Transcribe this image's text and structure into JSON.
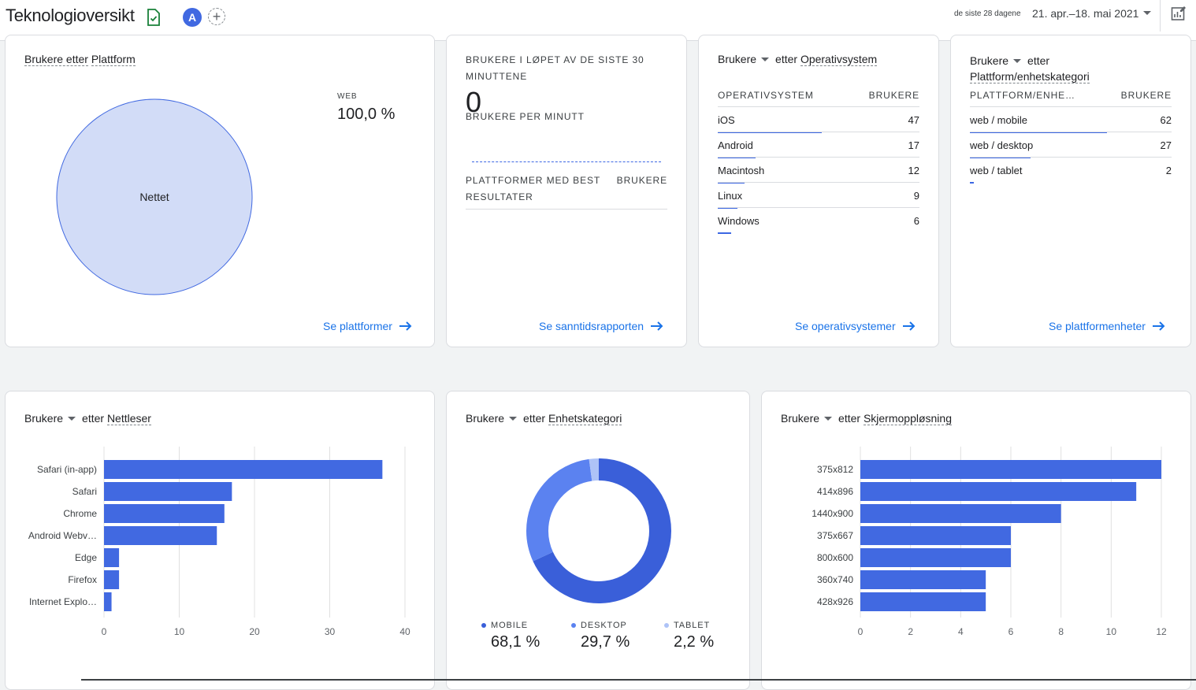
{
  "header": {
    "title": "Teknologioversikt",
    "avatar_letter": "A",
    "add_comparison": "+",
    "date_prefix": "de siste 28 dagene",
    "date_range": "21. apr.–18. mai 2021"
  },
  "platform_card": {
    "title_metric": "Brukere etter",
    "title_dim": "Plattform",
    "pie_label": "Nettet",
    "legend_key": "WEB",
    "legend_value": "100,0 %",
    "link": "Se plattformer",
    "chart_data": {
      "type": "pie",
      "categories": [
        "Nettet"
      ],
      "values": [
        100.0
      ]
    }
  },
  "realtime_card": {
    "title_line1": "BRUKERE I LØPET AV DE SISTE 30",
    "title_line2": "MINUTTENE",
    "big_value": "0",
    "per_minute": "BRUKERE PER MINUTT",
    "table_head_left1": "PLATTFORMER MED BEST",
    "table_head_left2": "RESULTATER",
    "table_head_right": "BRUKERE",
    "link": "Se sanntidsrapporten"
  },
  "os_card": {
    "title_metric": "Brukere",
    "title_mid": "etter",
    "title_dim": "Operativsystem",
    "col1": "OPERATIVSYSTEM",
    "col2": "BRUKERE",
    "rows": [
      {
        "label": "iOS",
        "value": "47",
        "share": 1.0
      },
      {
        "label": "Android",
        "value": "17",
        "share": 0.36
      },
      {
        "label": "Macintosh",
        "value": "12",
        "share": 0.26
      },
      {
        "label": "Linux",
        "value": "9",
        "share": 0.19
      },
      {
        "label": "Windows",
        "value": "6",
        "share": 0.13
      }
    ],
    "link": "Se operativsystemer"
  },
  "device_platform_card": {
    "title_metric": "Brukere",
    "title_mid": "etter",
    "title_dim": "Plattform/enhetskategori",
    "col1": "PLATTFORM/ENHE…",
    "col2": "BRUKERE",
    "rows": [
      {
        "label": "web / mobile",
        "value": "62",
        "share": 1.0
      },
      {
        "label": "web / desktop",
        "value": "27",
        "share": 0.44
      },
      {
        "label": "web / tablet",
        "value": "2",
        "share": 0.03
      }
    ],
    "link": "Se plattformenheter"
  },
  "browser_card": {
    "title_metric": "Brukere",
    "title_mid": "etter",
    "title_dim": "Nettleser",
    "chart_data": {
      "type": "bar",
      "orientation": "horizontal",
      "categories": [
        "Safari (in-app)",
        "Safari",
        "Chrome",
        "Android Webv…",
        "Edge",
        "Firefox",
        "Internet Explo…"
      ],
      "values": [
        37,
        17,
        16,
        15,
        2,
        2,
        1
      ],
      "xlim": [
        0,
        40
      ],
      "xticks": [
        "0",
        "10",
        "20",
        "30",
        "40"
      ],
      "color": "#4169e1"
    }
  },
  "device_card": {
    "title_metric": "Brukere",
    "title_mid": "etter",
    "title_dim": "Enhetskategori",
    "chart_data": {
      "type": "pie",
      "donut": true,
      "categories": [
        "MOBILE",
        "DESKTOP",
        "TABLET"
      ],
      "values": [
        68.1,
        29.7,
        2.2
      ],
      "colors": [
        "#3a5fd9",
        "#5b82f0",
        "#aec3f7"
      ]
    },
    "legend": [
      {
        "label": "MOBILE",
        "value": "68,1 %",
        "color": "#3a5fd9"
      },
      {
        "label": "DESKTOP",
        "value": "29,7 %",
        "color": "#5b82f0"
      },
      {
        "label": "TABLET",
        "value": "2,2 %",
        "color": "#aec3f7"
      }
    ]
  },
  "resolution_card": {
    "title_metric": "Brukere",
    "title_mid": "etter",
    "title_dim": "Skjermoppløsning",
    "chart_data": {
      "type": "bar",
      "orientation": "horizontal",
      "categories": [
        "375x812",
        "414x896",
        "1440x900",
        "375x667",
        "800x600",
        "360x740",
        "428x926"
      ],
      "values": [
        12,
        11,
        8,
        6,
        6,
        5,
        5
      ],
      "xlim": [
        0,
        12
      ],
      "xticks": [
        "0",
        "2",
        "4",
        "6",
        "8",
        "10",
        "12"
      ],
      "color": "#4169e1"
    }
  }
}
